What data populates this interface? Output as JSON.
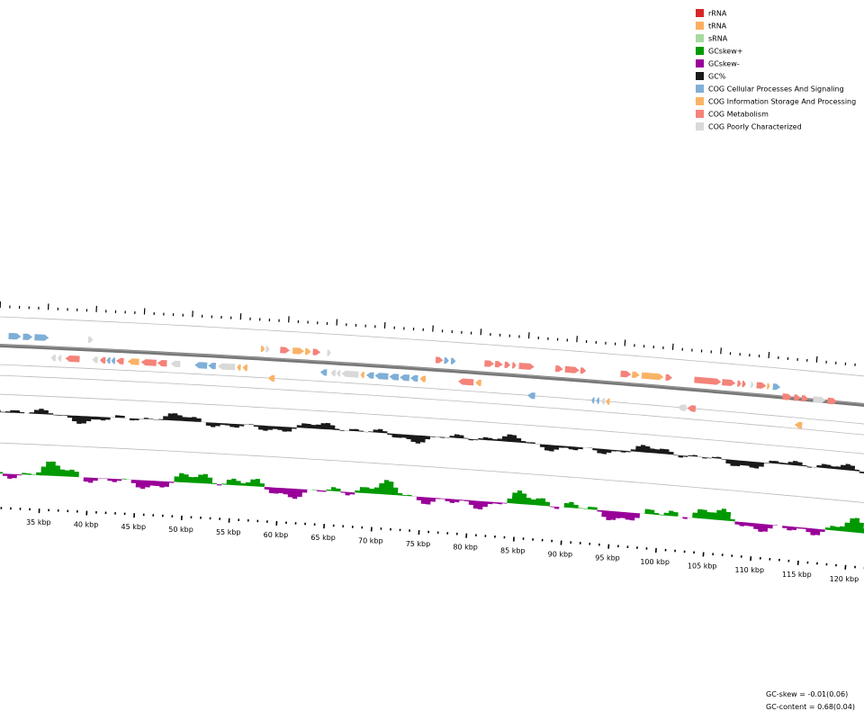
{
  "legend": [
    {
      "label": "rRNA",
      "color": "#d62728"
    },
    {
      "label": "tRNA",
      "color": "#fdae61"
    },
    {
      "label": "sRNA",
      "color": "#a6dba0"
    },
    {
      "label": "GCskew+",
      "color": "#009900"
    },
    {
      "label": "GCskew-",
      "color": "#990099"
    },
    {
      "label": "GC%",
      "color": "#1a1a1a"
    },
    {
      "label": "COG Cellular Processes And Signaling",
      "color": "#7fafd6"
    },
    {
      "label": "COG Information Storage And Processing",
      "color": "#f9b366"
    },
    {
      "label": "COG Metabolism",
      "color": "#f4837a"
    },
    {
      "label": "COG Poorly Characterized",
      "color": "#d9d9d9"
    }
  ],
  "ruler": {
    "ticks": [
      "35 kbp",
      "40 kbp",
      "45 kbp",
      "50 kbp",
      "55 kbp",
      "60 kbp",
      "65 kbp",
      "70 kbp",
      "75 kbp",
      "80 kbp",
      "85 kbp",
      "90 kbp",
      "95 kbp",
      "100 kbp",
      "105 kbp",
      "110 kbp",
      "115 kbp",
      "120 kbp"
    ]
  },
  "stats": {
    "gc_skew": "GC-skew = -0.01(0.06)",
    "gc_content": "GC-content = 0.68(0.04)"
  }
}
